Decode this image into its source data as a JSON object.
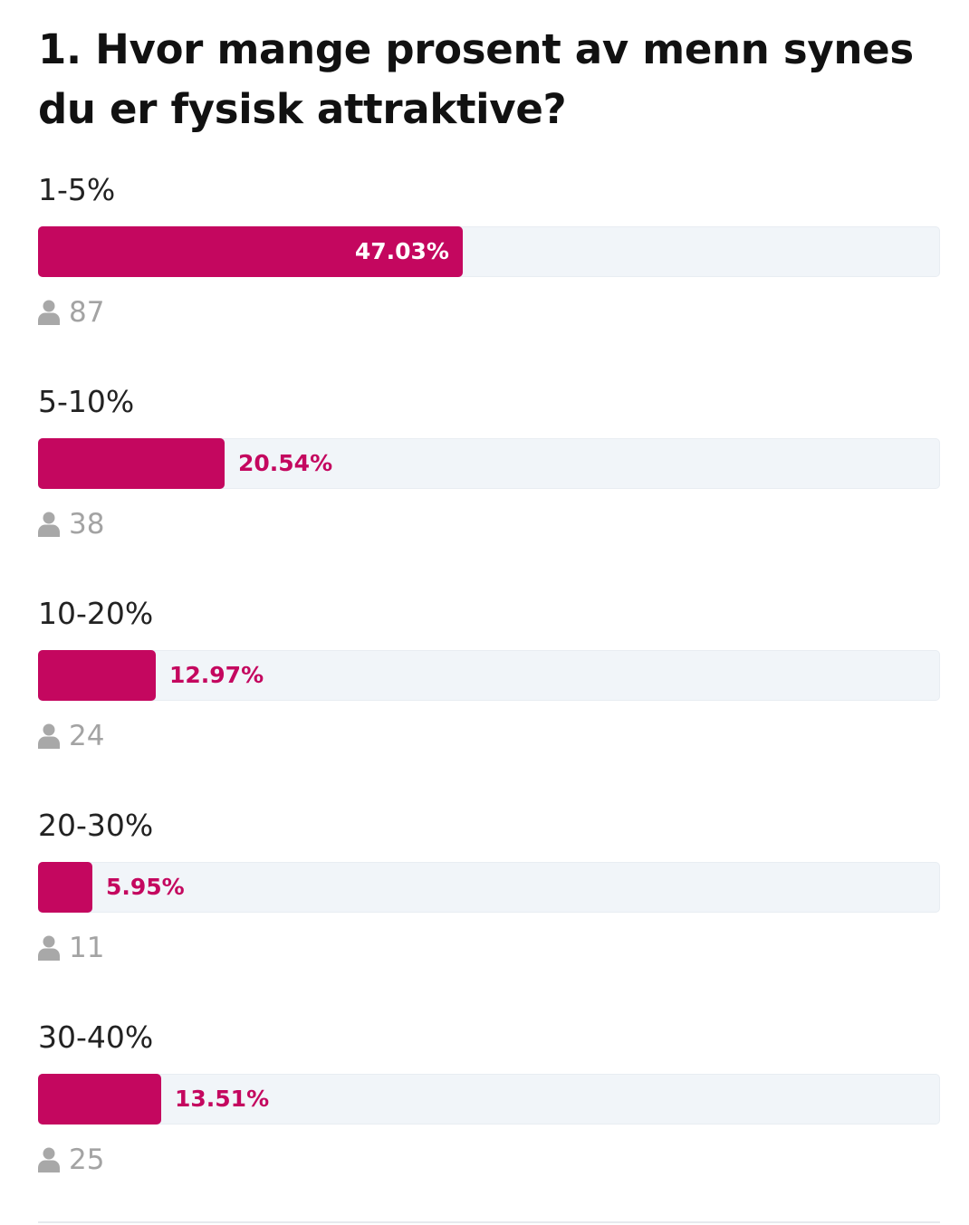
{
  "poll": {
    "question": "1. Hvor mange prosent av menn synes du er fysisk attraktive?",
    "accent_color": "#c4075f",
    "track_color": "#f1f5f9",
    "options": [
      {
        "label": "1-5%",
        "percent_label": "47.03%",
        "percent": 47.03,
        "votes": "87",
        "icon": "user-icon"
      },
      {
        "label": "5-10%",
        "percent_label": "20.54%",
        "percent": 20.54,
        "votes": "38",
        "icon": "user-icon"
      },
      {
        "label": "10-20%",
        "percent_label": "12.97%",
        "percent": 12.97,
        "votes": "24",
        "icon": "user-icon"
      },
      {
        "label": "20-30%",
        "percent_label": "5.95%",
        "percent": 5.95,
        "votes": "11",
        "icon": "user-icon"
      },
      {
        "label": "30-40%",
        "percent_label": "13.51%",
        "percent": 13.51,
        "votes": "25",
        "icon": "user-icon"
      }
    ]
  }
}
